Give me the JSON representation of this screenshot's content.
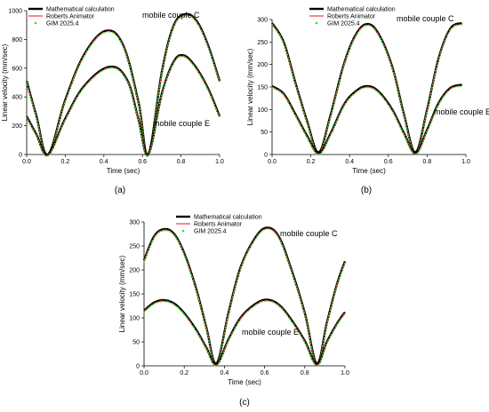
{
  "chart_data": [
    {
      "id": "a",
      "type": "line",
      "caption": "(a)",
      "xlabel": "Time (sec)",
      "ylabel": "Linear velocity (mm/sec)",
      "xlim": [
        0,
        1.0
      ],
      "ylim": [
        0,
        1000
      ],
      "xticks": [
        0.0,
        0.2,
        0.4,
        0.6,
        0.8,
        1.0
      ],
      "yticks": [
        0,
        200,
        400,
        600,
        800,
        1000
      ],
      "tick_decimals": 1,
      "legend": [
        "Mathematical calculation",
        "Roberts Animator",
        "GIM 2025.4"
      ],
      "legend_position": "top-left",
      "annotations": [
        "mobile couple C",
        "mobile couple E"
      ],
      "series": [
        {
          "name": "Mathematical calculation",
          "curve": "mobile couple C",
          "x": [
            0,
            0.05,
            0.11,
            0.2,
            0.3,
            0.41,
            0.5,
            0.58,
            0.63,
            0.7,
            0.76,
            0.82,
            0.88,
            0.94,
            1.0
          ],
          "y": [
            510,
            270,
            0,
            380,
            700,
            860,
            760,
            360,
            0,
            570,
            890,
            975,
            930,
            760,
            510
          ]
        },
        {
          "name": "Mathematical calculation",
          "curve": "mobile couple E",
          "x": [
            0,
            0.05,
            0.11,
            0.2,
            0.3,
            0.43,
            0.52,
            0.58,
            0.63,
            0.7,
            0.76,
            0.81,
            0.87,
            0.94,
            1.0
          ],
          "y": [
            265,
            140,
            0,
            250,
            480,
            610,
            520,
            240,
            0,
            420,
            640,
            690,
            620,
            460,
            265
          ]
        }
      ]
    },
    {
      "id": "b",
      "type": "line",
      "caption": "(b)",
      "xlabel": "Time (sec)",
      "ylabel": "Linear velocity (mm/sec)",
      "xlim": [
        0,
        1.0
      ],
      "ylim": [
        0,
        300
      ],
      "xticks": [
        0.0,
        0.2,
        0.4,
        0.6,
        0.8,
        1.0
      ],
      "yticks": [
        0,
        50,
        100,
        150,
        200,
        250,
        300
      ],
      "tick_decimals": 1,
      "legend": [
        "Mathematical calculation",
        "Roberts Animator",
        "GIM 2025.4"
      ],
      "legend_position": "top-center",
      "annotations": [
        "mobile couple C",
        "mobile couple E"
      ],
      "series": [
        {
          "name": "Mathematical calculation",
          "curve": "mobile couple C",
          "x": [
            0,
            0.06,
            0.12,
            0.18,
            0.24,
            0.3,
            0.37,
            0.43,
            0.49,
            0.55,
            0.62,
            0.68,
            0.74,
            0.8,
            0.86,
            0.92,
            0.98
          ],
          "y": [
            292,
            250,
            160,
            75,
            5,
            85,
            200,
            265,
            290,
            268,
            195,
            90,
            5,
            100,
            215,
            280,
            292
          ]
        },
        {
          "name": "Mathematical calculation",
          "curve": "mobile couple E",
          "x": [
            0,
            0.06,
            0.12,
            0.18,
            0.24,
            0.3,
            0.37,
            0.43,
            0.49,
            0.55,
            0.62,
            0.68,
            0.74,
            0.8,
            0.86,
            0.92,
            0.98
          ],
          "y": [
            152,
            135,
            90,
            42,
            3,
            45,
            110,
            140,
            152,
            140,
            100,
            48,
            3,
            55,
            115,
            148,
            155
          ]
        }
      ]
    },
    {
      "id": "c",
      "type": "line",
      "caption": "(c)",
      "xlabel": "Time (sec)",
      "ylabel": "Linear velocity (mm/sec)",
      "xlim": [
        0,
        1.0
      ],
      "ylim": [
        0,
        300
      ],
      "xticks": [
        0.0,
        0.2,
        0.4,
        0.6,
        0.8,
        1.0
      ],
      "yticks": [
        0,
        50,
        100,
        150,
        200,
        250,
        300
      ],
      "tick_decimals": 1,
      "legend": [
        "Mathematical calculation",
        "Roberts Animator",
        "GIM 2025.4"
      ],
      "legend_position": "top-center",
      "annotations": [
        "mobile couple C",
        "mobile couple E"
      ],
      "series": [
        {
          "name": "Mathematical calculation",
          "curve": "mobile couple C",
          "x": [
            0,
            0.05,
            0.1,
            0.15,
            0.2,
            0.26,
            0.31,
            0.36,
            0.42,
            0.48,
            0.55,
            0.61,
            0.67,
            0.73,
            0.8,
            0.86,
            0.91,
            0.96,
            1.0
          ],
          "y": [
            220,
            270,
            285,
            275,
            235,
            160,
            80,
            5,
            110,
            205,
            265,
            288,
            270,
            205,
            110,
            5,
            90,
            170,
            218
          ]
        },
        {
          "name": "Mathematical calculation",
          "curve": "mobile couple E",
          "x": [
            0,
            0.05,
            0.1,
            0.15,
            0.2,
            0.26,
            0.31,
            0.36,
            0.42,
            0.48,
            0.55,
            0.61,
            0.67,
            0.73,
            0.8,
            0.86,
            0.91,
            0.96,
            1.0
          ],
          "y": [
            115,
            132,
            137,
            130,
            110,
            75,
            38,
            3,
            55,
            100,
            128,
            138,
            128,
            98,
            52,
            3,
            50,
            88,
            112
          ]
        }
      ]
    }
  ],
  "colors": {
    "math": "#000000",
    "roberts": "#e8141a",
    "gim": "#3cd63c"
  }
}
